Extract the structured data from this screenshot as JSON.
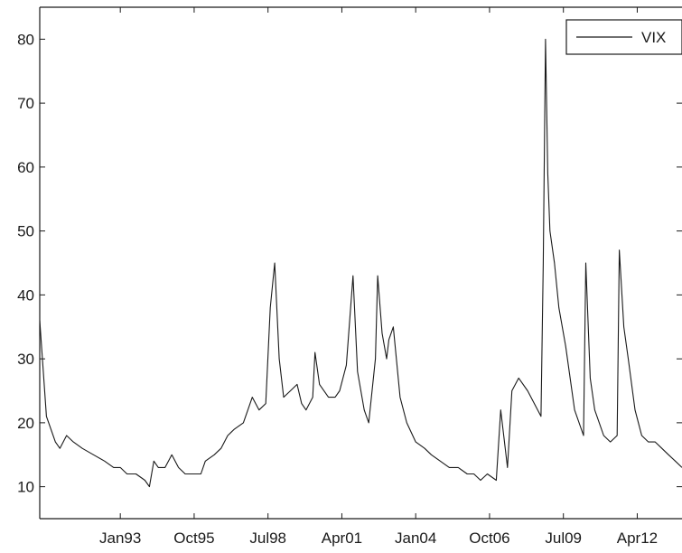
{
  "chart_data": {
    "type": "line",
    "title": "",
    "xlabel": "",
    "ylabel": "",
    "legend": {
      "placement": "top-right",
      "entries": [
        "VIX"
      ]
    },
    "grid": false,
    "xlim": [
      "1990-01",
      "2013-12"
    ],
    "ylim": [
      5,
      85
    ],
    "x_ticks": [
      {
        "label": "Jan93",
        "value": "1993-01"
      },
      {
        "label": "Oct95",
        "value": "1995-10"
      },
      {
        "label": "Jul98",
        "value": "1998-07"
      },
      {
        "label": "Apr01",
        "value": "2001-04"
      },
      {
        "label": "Jan04",
        "value": "2004-01"
      },
      {
        "label": "Oct06",
        "value": "2006-10"
      },
      {
        "label": "Jul09",
        "value": "2009-07"
      },
      {
        "label": "Apr12",
        "value": "2012-04"
      }
    ],
    "y_ticks": [
      {
        "label": "10",
        "value": 10
      },
      {
        "label": "20",
        "value": 20
      },
      {
        "label": "30",
        "value": 30
      },
      {
        "label": "40",
        "value": 40
      },
      {
        "label": "50",
        "value": 50
      },
      {
        "label": "60",
        "value": 60
      },
      {
        "label": "70",
        "value": 70
      },
      {
        "label": "80",
        "value": 80
      }
    ],
    "series": [
      {
        "name": "VIX",
        "color": "#1a1a1a",
        "x": [
          "1990-01",
          "1990-04",
          "1990-08",
          "1990-10",
          "1991-01",
          "1991-04",
          "1991-08",
          "1992-01",
          "1992-06",
          "1992-10",
          "1993-01",
          "1993-04",
          "1993-08",
          "1993-12",
          "1994-02",
          "1994-04",
          "1994-06",
          "1994-09",
          "1994-12",
          "1995-03",
          "1995-06",
          "1995-10",
          "1996-01",
          "1996-03",
          "1996-07",
          "1996-10",
          "1997-01",
          "1997-04",
          "1997-08",
          "1997-10",
          "1997-12",
          "1998-03",
          "1998-06",
          "1998-08",
          "1998-10",
          "1998-12",
          "1999-02",
          "1999-05",
          "1999-08",
          "1999-10",
          "1999-12",
          "2000-03",
          "2000-04",
          "2000-06",
          "2000-10",
          "2001-01",
          "2001-03",
          "2001-06",
          "2001-09",
          "2001-11",
          "2002-02",
          "2002-04",
          "2002-07",
          "2002-08",
          "2002-10",
          "2002-12",
          "2003-01",
          "2003-03",
          "2003-06",
          "2003-09",
          "2004-01",
          "2004-05",
          "2004-08",
          "2004-12",
          "2005-04",
          "2005-08",
          "2005-12",
          "2006-03",
          "2006-06",
          "2006-09",
          "2007-01",
          "2007-03",
          "2007-06",
          "2007-08",
          "2007-11",
          "2008-03",
          "2008-06",
          "2008-09",
          "2008-10",
          "2008-11",
          "2008-12",
          "2009-01",
          "2009-03",
          "2009-05",
          "2009-08",
          "2009-12",
          "2010-04",
          "2010-05",
          "2010-07",
          "2010-09",
          "2011-01",
          "2011-04",
          "2011-07",
          "2011-08",
          "2011-10",
          "2011-12",
          "2012-03",
          "2012-06",
          "2012-09",
          "2012-12",
          "2013-03",
          "2013-06",
          "2013-09",
          "2013-12"
        ],
        "y": [
          36,
          21,
          17,
          16,
          18,
          17,
          16,
          15,
          14,
          13,
          13,
          12,
          12,
          11,
          10,
          14,
          13,
          13,
          15,
          13,
          12,
          12,
          12,
          14,
          15,
          16,
          18,
          19,
          20,
          22,
          24,
          22,
          23,
          38,
          45,
          30,
          24,
          25,
          26,
          23,
          22,
          24,
          31,
          26,
          24,
          24,
          25,
          29,
          43,
          28,
          22,
          20,
          30,
          43,
          34,
          30,
          33,
          35,
          24,
          20,
          17,
          16,
          15,
          14,
          13,
          13,
          12,
          12,
          11,
          12,
          11,
          22,
          13,
          25,
          27,
          25,
          23,
          21,
          45,
          80,
          59,
          50,
          45,
          38,
          32,
          22,
          18,
          45,
          27,
          22,
          18,
          17,
          18,
          47,
          35,
          30,
          22,
          18,
          17,
          17,
          16,
          15,
          14,
          13
        ]
      }
    ]
  }
}
